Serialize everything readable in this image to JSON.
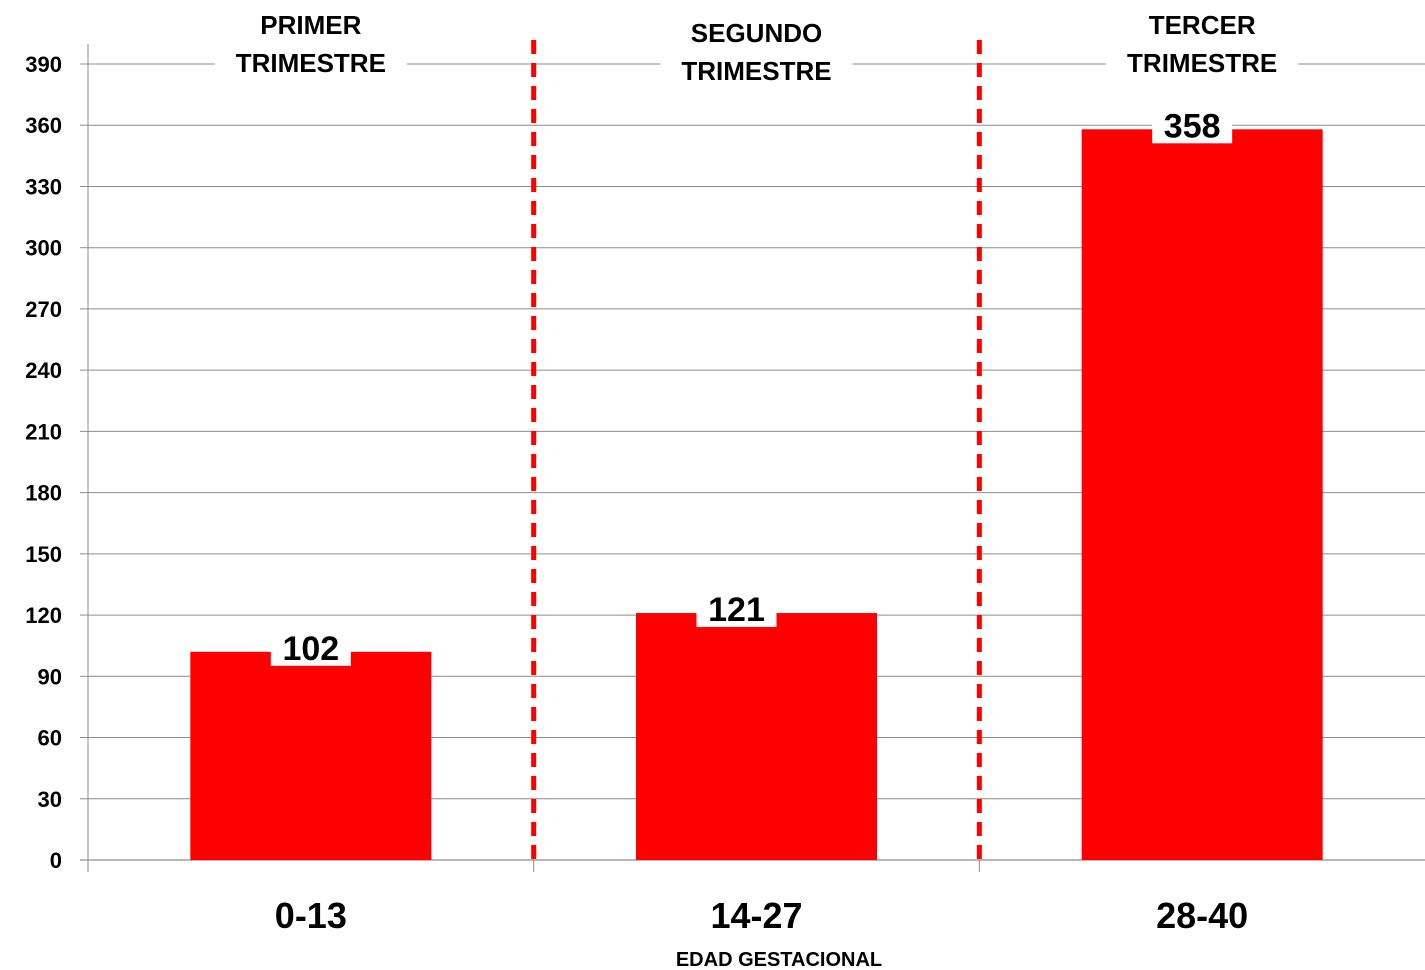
{
  "chart_data": {
    "type": "bar",
    "categories": [
      "0-13",
      "14-27",
      "28-40"
    ],
    "values": [
      102,
      121,
      358
    ],
    "xlabel": "EDAD GESTACIONAL",
    "ylabel": "",
    "ylim": [
      0,
      400
    ],
    "yticks": [
      0,
      30,
      60,
      90,
      120,
      150,
      180,
      210,
      240,
      270,
      300,
      330,
      360,
      390
    ],
    "grid": true,
    "bar_color": "#ff0000",
    "divider_color": "#ff0000",
    "regions": [
      {
        "line1": "PRIMER",
        "line2": "TRIMESTRE"
      },
      {
        "line1": "SEGUNDO",
        "line2": "TRIMESTRE"
      },
      {
        "line1": "TERCER",
        "line2": "TRIMESTRE"
      }
    ]
  }
}
